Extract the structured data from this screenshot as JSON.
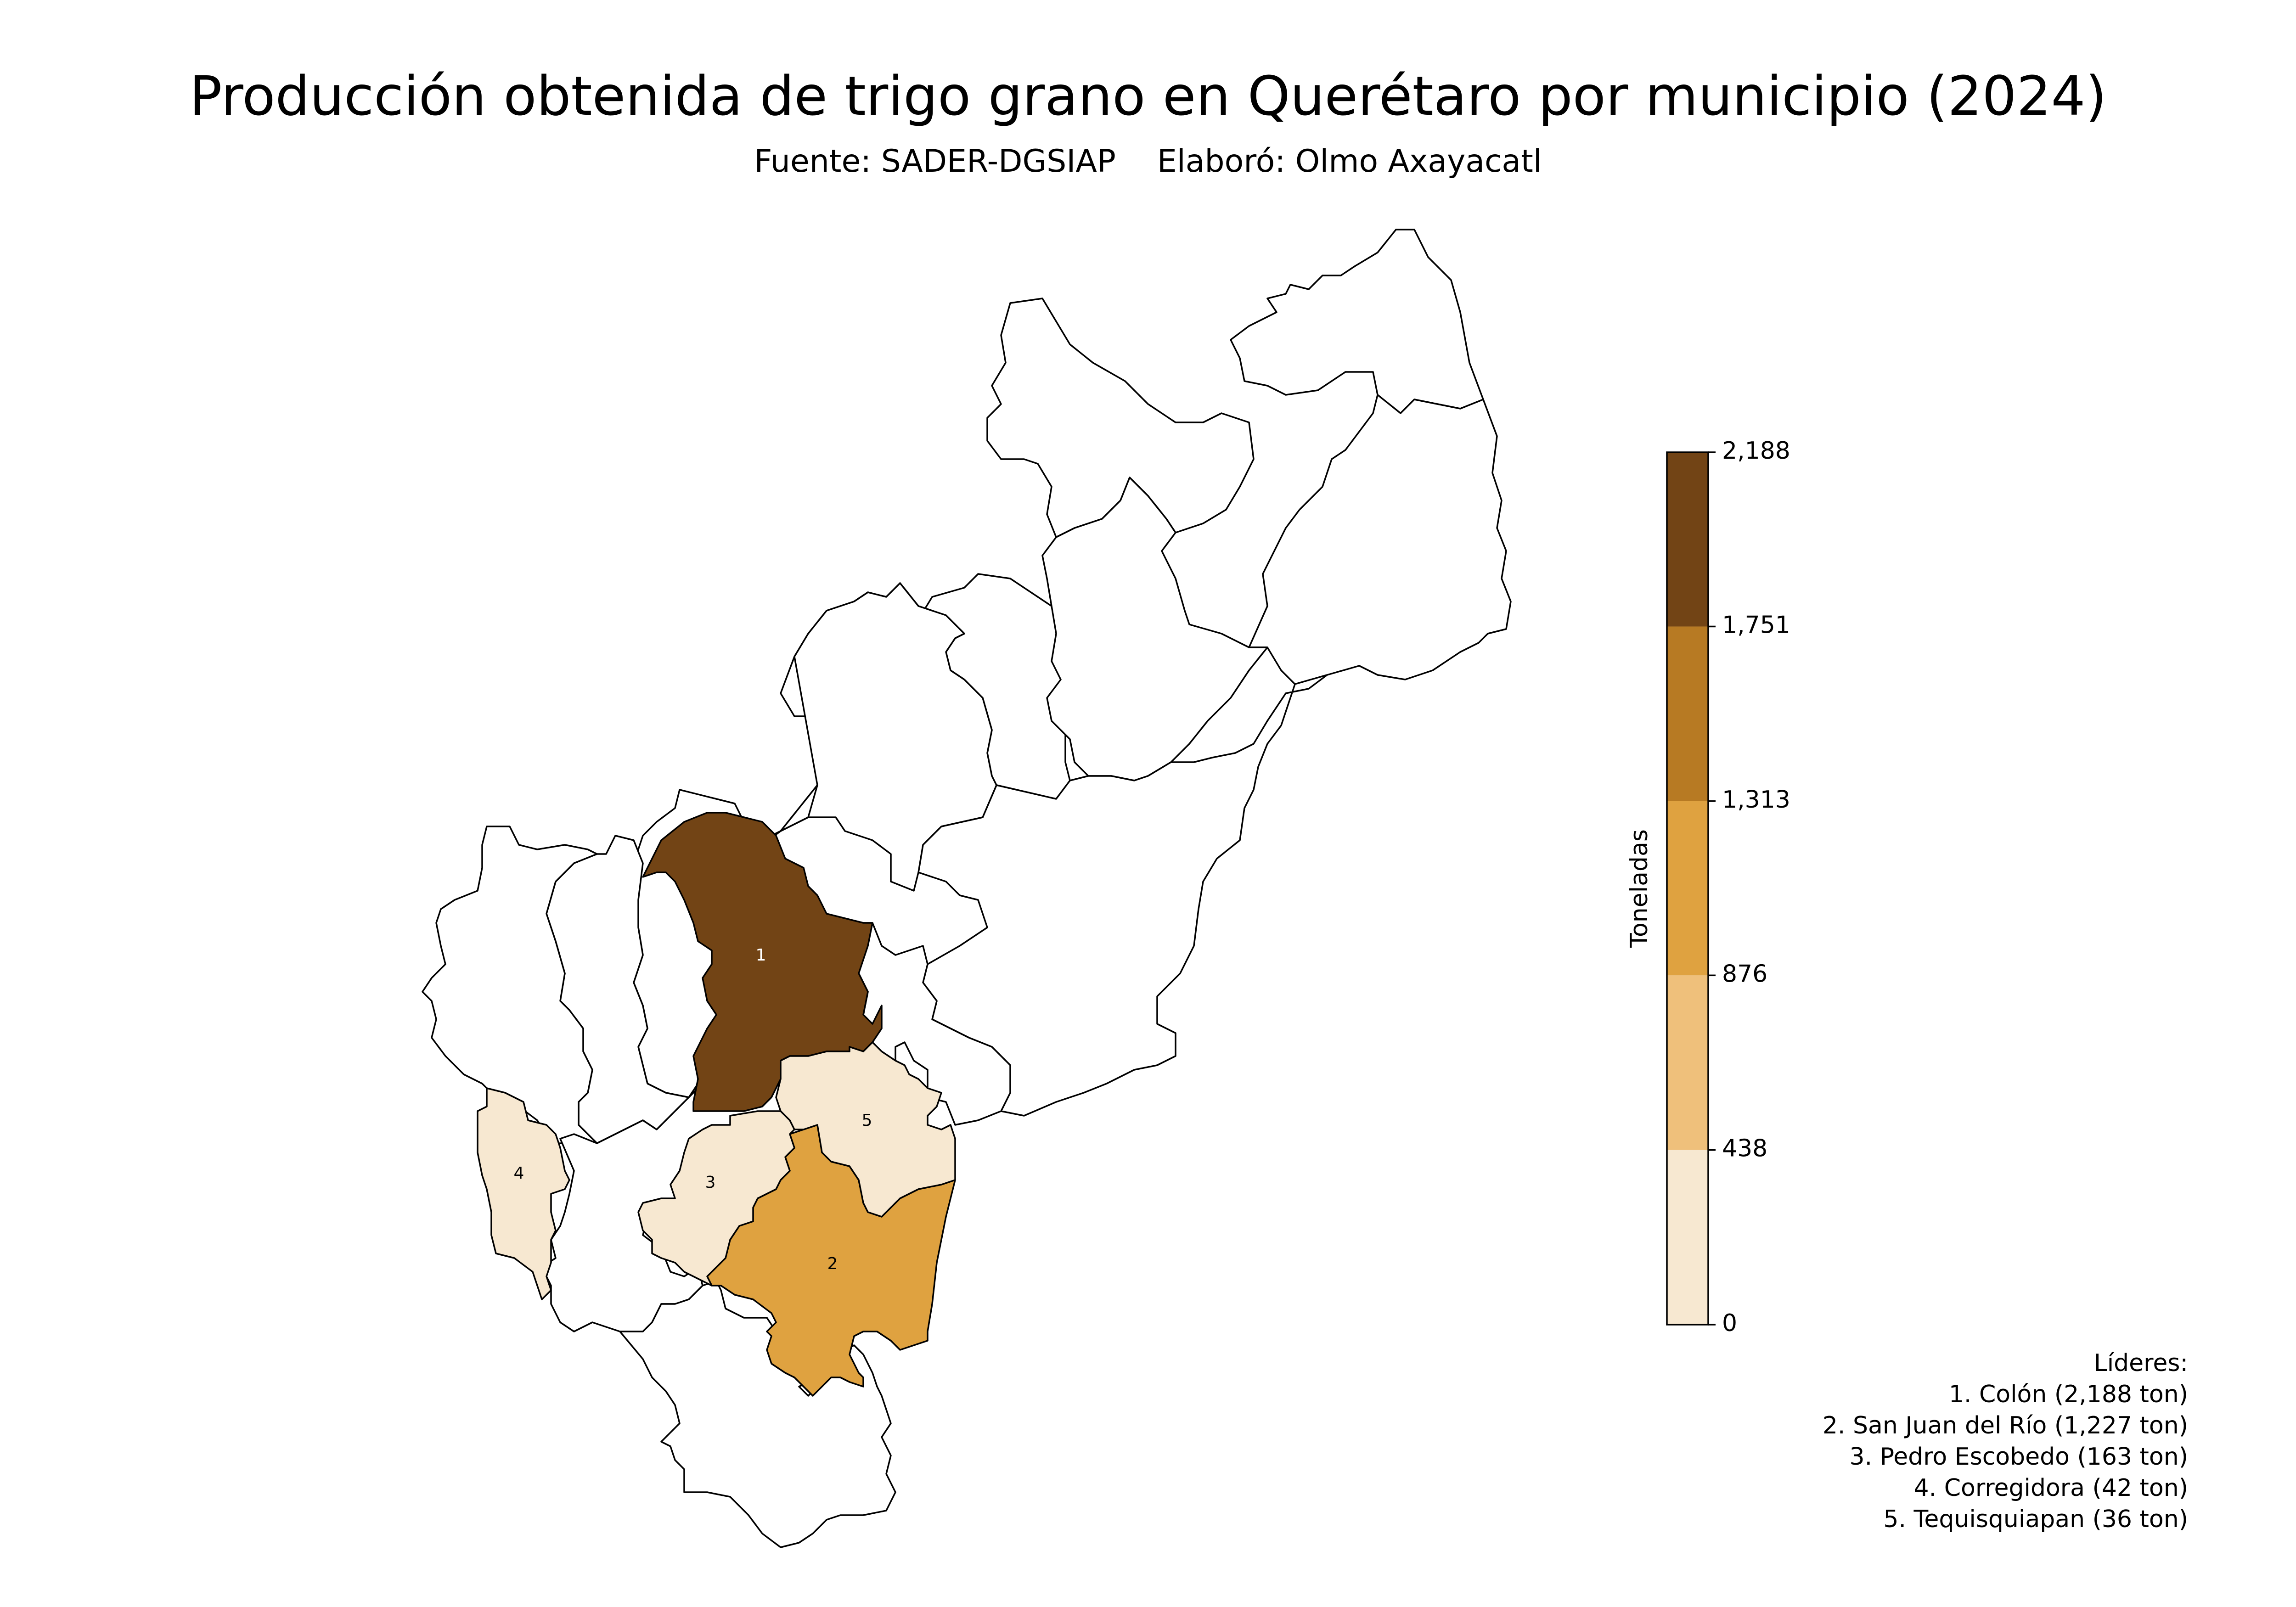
{
  "title": "Producción obtenida de trigo grano en Querétaro por municipio (2024)",
  "subtitle": {
    "source": "Fuente: SADER-DGSIAP",
    "author": "Elaboró: Olmo Axayacatl"
  },
  "colorbar": {
    "label": "Toneladas",
    "ticks": [
      "0",
      "438",
      "876",
      "1,313",
      "1,751",
      "2,188"
    ],
    "bins": [
      {
        "from": 0,
        "to": 438,
        "color": "#f7e8d1"
      },
      {
        "from": 438,
        "to": 876,
        "color": "#efc07b"
      },
      {
        "from": 876,
        "to": 1313,
        "color": "#dfa240"
      },
      {
        "from": 1313,
        "to": 1751,
        "color": "#b77a23"
      },
      {
        "from": 1751,
        "to": 2188,
        "color": "#724415"
      }
    ]
  },
  "map_data": {
    "unit": "ton",
    "municipalities": [
      {
        "rank": "1",
        "name": "Colón",
        "value": 2188,
        "color": "#724415",
        "label_color": "#ffffff"
      },
      {
        "rank": "2",
        "name": "San Juan del Río",
        "value": 1227,
        "color": "#dfa240",
        "label_color": "#000000"
      },
      {
        "rank": "3",
        "name": "Pedro Escobedo",
        "value": 163,
        "color": "#f7e8d1",
        "label_color": "#000000"
      },
      {
        "rank": "4",
        "name": "Corregidora",
        "value": 42,
        "color": "#f7e8d1",
        "label_color": "#000000"
      },
      {
        "rank": "5",
        "name": "Tequisquiapan",
        "value": 36,
        "color": "#f7e8d1",
        "label_color": "#000000"
      }
    ],
    "no_data_color": "#ffffff"
  },
  "leaders": {
    "heading": "Líderes:",
    "items": [
      "1. Colón (2,188 ton)",
      "2. San Juan del Río (1,227 ton)",
      "3. Pedro Escobedo (163 ton)",
      "4. Corregidora (42 ton)",
      "5. Tequisquiapan (36 ton)"
    ]
  }
}
